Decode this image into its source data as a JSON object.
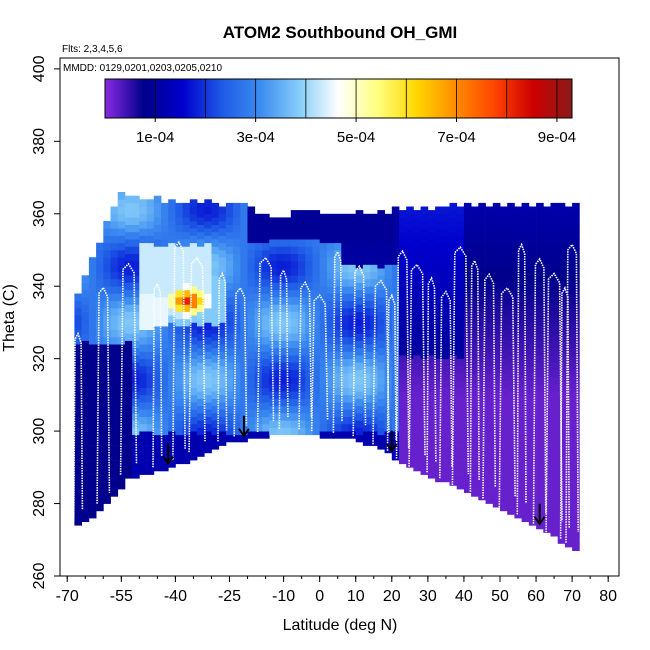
{
  "chart_data": {
    "type": "heatmap",
    "title": "ATOM2 Southbound OH_GMI",
    "flights_note": "Flts: 2,3,4,5,6",
    "dates_note": "MMDD: 0129,0201,0203,0205,0210",
    "xlabel": "Latitude (deg N)",
    "ylabel": "Theta (C)",
    "xlim": [
      -72,
      83
    ],
    "ylim": [
      260,
      403
    ],
    "x_ticks": [
      -70,
      -55,
      -40,
      -25,
      -10,
      0,
      10,
      20,
      30,
      40,
      50,
      60,
      70,
      80
    ],
    "x_tick_labels": [
      "-70",
      "-55",
      "-40",
      "-25",
      "-10",
      "0",
      "10",
      "20",
      "30",
      "40",
      "50",
      "60",
      "70",
      "80"
    ],
    "y_ticks": [
      260,
      280,
      300,
      320,
      340,
      360,
      380,
      400
    ],
    "y_tick_labels": [
      "260",
      "280",
      "300",
      "320",
      "340",
      "360",
      "380",
      "400"
    ],
    "colorbar": {
      "min": 0.0,
      "max": 0.00093,
      "colors": [
        "#8a2be2",
        "#00008b",
        "#0000cd",
        "#1e5ae6",
        "#3c8cf0",
        "#87cefa",
        "#ffffff",
        "#ffff80",
        "#ffd700",
        "#ff8c00",
        "#ff4500",
        "#cc0000",
        "#8b1a1a"
      ],
      "tick_values": [
        0.0001,
        0.0003,
        0.0005,
        0.0007,
        0.0009
      ],
      "tick_labels": [
        "1e-04",
        "3e-04",
        "5e-04",
        "7e-04",
        "9e-04"
      ]
    },
    "surface_boundary": [
      [
        -68,
        273.5
      ],
      [
        -60,
        279
      ],
      [
        -53,
        287
      ],
      [
        -45,
        289
      ],
      [
        -38,
        291.5
      ],
      [
        -25,
        297
      ],
      [
        -8,
        300
      ],
      [
        0,
        299
      ],
      [
        10,
        298
      ],
      [
        18,
        295
      ],
      [
        25,
        290
      ],
      [
        35,
        286
      ],
      [
        50,
        279
      ],
      [
        60,
        274
      ],
      [
        72,
        267
      ]
    ],
    "top_boundary": [
      [
        -68,
        335
      ],
      [
        -55,
        366
      ],
      [
        -52,
        364
      ],
      [
        -44,
        363
      ],
      [
        -30,
        362
      ],
      [
        -18,
        362
      ],
      [
        -18,
        358
      ],
      [
        0,
        360
      ],
      [
        20,
        360
      ],
      [
        50,
        362
      ],
      [
        68,
        362
      ]
    ],
    "profile_x_centers": [
      -67,
      -60,
      -53,
      -45,
      -39,
      -34,
      -27,
      -22,
      -15,
      -10,
      -4,
      0,
      5,
      11,
      17,
      20,
      23,
      27,
      31,
      35,
      39,
      43,
      47,
      52,
      56,
      61,
      65,
      68,
      70
    ],
    "arrows_latitude": [
      -42,
      -21,
      20,
      61
    ],
    "hotspot_region": {
      "lat": [
        -47,
        -26
      ],
      "theta": [
        329,
        343
      ],
      "value": 0.00085
    }
  }
}
